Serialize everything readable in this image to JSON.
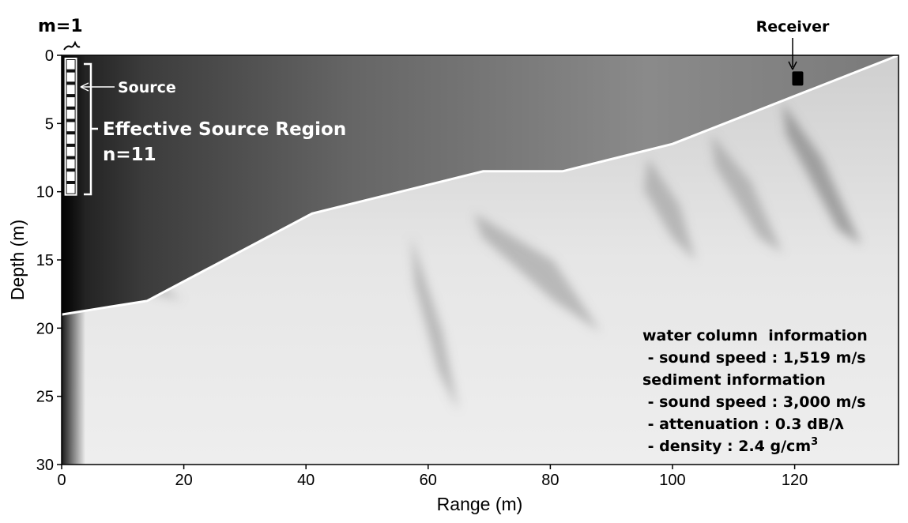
{
  "chart_data": {
    "type": "heatmap",
    "title": "",
    "xlabel": "Range (m)",
    "ylabel": "Depth (m)",
    "xlim": [
      0,
      137
    ],
    "ylim": [
      30,
      0
    ],
    "xticks": [
      "0",
      "20",
      "40",
      "60",
      "80",
      "100",
      "120"
    ],
    "yticks": [
      "0",
      "5",
      "10",
      "15",
      "20",
      "25",
      "30"
    ],
    "xtick_values": [
      0,
      20,
      40,
      60,
      80,
      100,
      120
    ],
    "ytick_values": [
      0,
      5,
      10,
      15,
      20,
      25,
      30
    ],
    "colormap": "grayscale",
    "grid": false,
    "bathymetry": {
      "range": [
        0,
        14,
        41,
        69,
        82,
        100,
        137
      ],
      "depth": [
        19.0,
        18.0,
        11.6,
        8.5,
        8.5,
        6.5,
        0.0
      ]
    },
    "source": {
      "label": "Source",
      "range": 1.5,
      "depth": 1.0
    },
    "source_region": {
      "range": 1.5,
      "depth_top": 0.0,
      "depth_bottom": 10.0,
      "elements": 11,
      "label": "Effective Source Region",
      "n_label": "n=11",
      "m_label": "m=1"
    },
    "receiver": {
      "label": "Receiver",
      "range": 120.5,
      "depth": 1.7
    },
    "info": [
      "water column  information",
      " - sound speed : 1,519 m/s",
      "sediment information",
      " - sound speed : 3,000 m/s",
      " - attenuation : 0.3 dB/λ",
      " - density : 2.4 g/cm"
    ],
    "density_sup": "3"
  }
}
